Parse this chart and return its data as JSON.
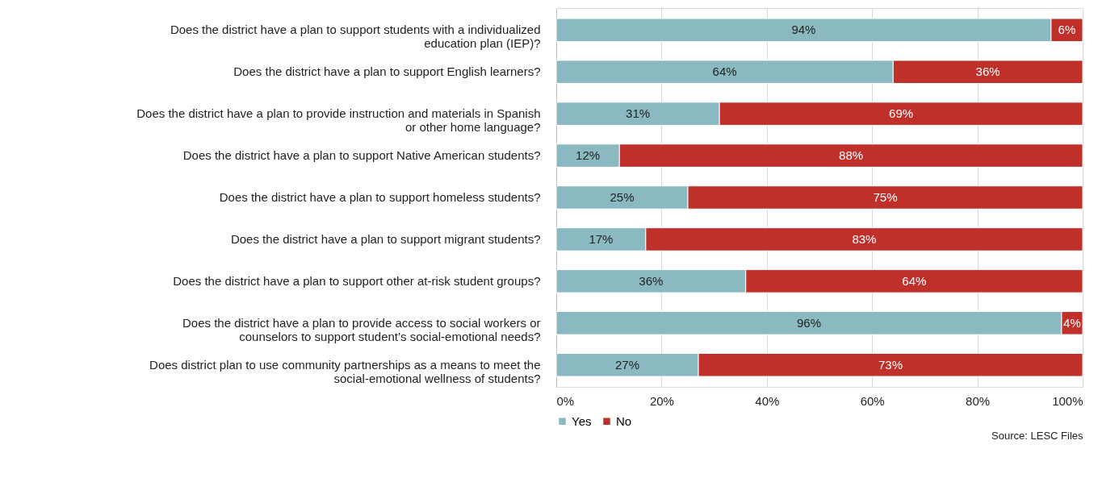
{
  "chart_data": {
    "type": "bar",
    "orientation": "horizontal",
    "stacked": true,
    "categories": [
      "Does the district have a plan to support students with a individualized education plan (IEP)?",
      "Does the district have a plan to support English learners?",
      "Does the district have a plan to provide instruction and materials in Spanish or other home language?",
      "Does the district have a plan to support Native American students?",
      "Does the district have a plan to support homeless students?",
      "Does the district have a plan to support migrant students?",
      "Does the district have a plan to support other at-risk student groups?",
      "Does the district have a plan to provide access to social workers or counselors to support student’s social-emotional needs?",
      "Does district plan to use community partnerships as a means to meet the social-emotional wellness of students?"
    ],
    "series": [
      {
        "name": "Yes",
        "color": "#8ab9c1",
        "values": [
          94,
          64,
          31,
          12,
          25,
          17,
          36,
          96,
          27
        ],
        "value_labels": [
          "94%",
          "64%",
          "31%",
          "12%",
          "25%",
          "17%",
          "36%",
          "96%",
          "27%"
        ]
      },
      {
        "name": "No",
        "color": "#c0302a",
        "values": [
          6,
          36,
          69,
          88,
          75,
          83,
          64,
          4,
          73
        ],
        "value_labels": [
          "6%",
          "36%",
          "69%",
          "88%",
          "75%",
          "83%",
          "64%",
          "4%",
          "73%"
        ]
      }
    ],
    "xlim": [
      0,
      100
    ],
    "xticks": [
      {
        "value": 0,
        "label": "0%"
      },
      {
        "value": 20,
        "label": "20%"
      },
      {
        "value": 40,
        "label": "40%"
      },
      {
        "value": 60,
        "label": "60%"
      },
      {
        "value": 80,
        "label": "80%"
      },
      {
        "value": 100,
        "label": "100%"
      }
    ],
    "grid": "x",
    "legend": "bottom",
    "annotations": [
      "Source: LESC Files"
    ]
  }
}
